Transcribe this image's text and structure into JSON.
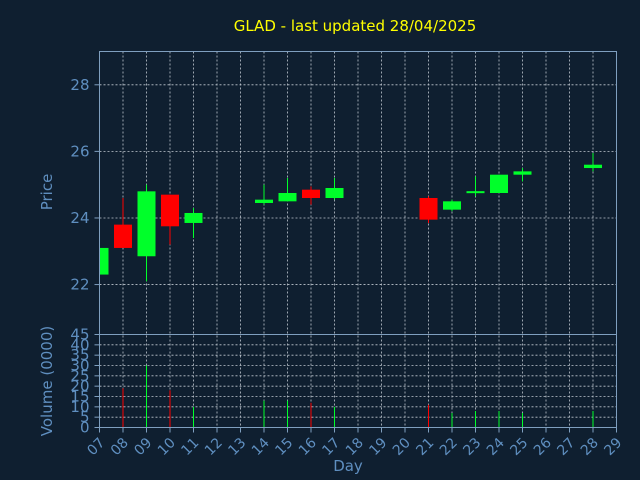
{
  "chart_data": {
    "type": "candlestick",
    "title": "GLAD - last updated 28/04/2025",
    "xlabel": "Day",
    "price_panel": {
      "ylabel": "Price",
      "ylim": [
        20.5,
        29
      ],
      "yticks": [
        22,
        24,
        26,
        28
      ],
      "grid": true
    },
    "volume_panel": {
      "ylabel": "Volume (0000)",
      "ylim": [
        0,
        45
      ],
      "yticks": [
        0,
        5,
        10,
        15,
        20,
        25,
        30,
        35,
        40,
        45
      ],
      "grid": true
    },
    "x_ticks": [
      "07",
      "08",
      "09",
      "10",
      "11",
      "12",
      "13",
      "14",
      "15",
      "16",
      "17",
      "18",
      "19",
      "20",
      "21",
      "22",
      "23",
      "24",
      "25",
      "26",
      "27",
      "28",
      "29"
    ],
    "x_range": [
      7,
      29
    ],
    "candles": [
      {
        "day": 7,
        "open": 22.3,
        "high": 23.1,
        "low": 22.3,
        "close": 23.1,
        "volume": 0
      },
      {
        "day": 8,
        "open": 23.8,
        "high": 24.6,
        "low": 23.1,
        "close": 23.1,
        "volume": 19
      },
      {
        "day": 9,
        "open": 22.85,
        "high": 25.0,
        "low": 22.1,
        "close": 24.8,
        "volume": 30
      },
      {
        "day": 10,
        "open": 24.7,
        "high": 24.7,
        "low": 23.2,
        "close": 23.75,
        "volume": 18
      },
      {
        "day": 11,
        "open": 23.85,
        "high": 24.3,
        "low": 23.4,
        "close": 24.15,
        "volume": 10
      },
      {
        "day": 14,
        "open": 24.45,
        "high": 25.0,
        "low": 24.4,
        "close": 24.55,
        "volume": 13
      },
      {
        "day": 15,
        "open": 24.5,
        "high": 25.2,
        "low": 24.5,
        "close": 24.75,
        "volume": 13
      },
      {
        "day": 16,
        "open": 24.85,
        "high": 24.95,
        "low": 24.4,
        "close": 24.6,
        "volume": 12
      },
      {
        "day": 17,
        "open": 24.6,
        "high": 25.2,
        "low": 24.55,
        "close": 24.9,
        "volume": 10
      },
      {
        "day": 21,
        "open": 24.6,
        "high": 24.65,
        "low": 23.85,
        "close": 23.95,
        "volume": 11
      },
      {
        "day": 22,
        "open": 24.25,
        "high": 24.55,
        "low": 24.2,
        "close": 24.5,
        "volume": 7
      },
      {
        "day": 23,
        "open": 24.75,
        "high": 25.25,
        "low": 24.65,
        "close": 24.8,
        "volume": 8
      },
      {
        "day": 24,
        "open": 24.75,
        "high": 25.3,
        "low": 24.75,
        "close": 25.3,
        "volume": 8
      },
      {
        "day": 25,
        "open": 25.3,
        "high": 25.5,
        "low": 25.1,
        "close": 25.4,
        "volume": 7
      },
      {
        "day": 28,
        "open": 25.5,
        "high": 25.95,
        "low": 25.4,
        "close": 25.6,
        "volume": 8
      }
    ],
    "colors": {
      "background": "#0f1f30",
      "up": "#00ff2a",
      "down": "#ff0000",
      "title": "#ffff00",
      "axis_text": "#5f8fc0",
      "frame": "#7f9fbf",
      "grid": "#c0c8d0"
    }
  }
}
